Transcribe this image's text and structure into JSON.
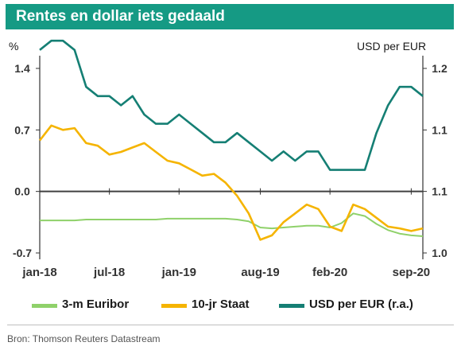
{
  "header": {
    "title": "Rentes en dollar iets gedaald"
  },
  "footer": {
    "source": "Bron: Thomson Reuters Datastream"
  },
  "colors": {
    "title_bg": "#159a84",
    "euribor": "#8fd16a",
    "staat": "#f5b400",
    "usd": "#157f74",
    "zero_line": "#404040"
  },
  "chart_data": {
    "type": "line",
    "left_axis": {
      "unit_label": "%",
      "ylim": [
        -0.7,
        1.4
      ],
      "ticks": [
        1.4,
        0.7,
        0.0,
        -0.7
      ],
      "tick_labels": [
        "1.4",
        "0.7",
        "0.0",
        "-0.7"
      ]
    },
    "right_axis": {
      "unit_label": "USD per EUR",
      "ylim": [
        1.0,
        1.2
      ],
      "ticks": [
        1.2,
        1.1333,
        1.0667,
        1.0
      ],
      "tick_labels": [
        "1.2",
        "1.1",
        "1.1",
        "1.0"
      ]
    },
    "x_axis": {
      "ticks": [
        "jan-18",
        "jul-18",
        "jan-19",
        "aug-19",
        "feb-20",
        "sep-20"
      ],
      "range": [
        "2018-01",
        "2020-10"
      ]
    },
    "grid": false,
    "legend_position": "bottom",
    "series": [
      {
        "name": "3-m Euribor",
        "axis": "left",
        "x": [
          "2018-01",
          "2018-02",
          "2018-03",
          "2018-04",
          "2018-05",
          "2018-06",
          "2018-07",
          "2018-08",
          "2018-09",
          "2018-10",
          "2018-11",
          "2018-12",
          "2019-01",
          "2019-02",
          "2019-03",
          "2019-04",
          "2019-05",
          "2019-06",
          "2019-07",
          "2019-08",
          "2019-09",
          "2019-10",
          "2019-11",
          "2019-12",
          "2020-01",
          "2020-02",
          "2020-03",
          "2020-04",
          "2020-05",
          "2020-06",
          "2020-07",
          "2020-08",
          "2020-09",
          "2020-10"
        ],
        "y": [
          -0.33,
          -0.33,
          -0.33,
          -0.33,
          -0.32,
          -0.32,
          -0.32,
          -0.32,
          -0.32,
          -0.32,
          -0.32,
          -0.31,
          -0.31,
          -0.31,
          -0.31,
          -0.31,
          -0.31,
          -0.32,
          -0.34,
          -0.41,
          -0.42,
          -0.41,
          -0.4,
          -0.39,
          -0.39,
          -0.41,
          -0.36,
          -0.25,
          -0.28,
          -0.37,
          -0.44,
          -0.48,
          -0.5,
          -0.51
        ]
      },
      {
        "name": "10-jr Staat",
        "axis": "left",
        "x": [
          "2018-01",
          "2018-02",
          "2018-03",
          "2018-04",
          "2018-05",
          "2018-06",
          "2018-07",
          "2018-08",
          "2018-09",
          "2018-10",
          "2018-11",
          "2018-12",
          "2019-01",
          "2019-02",
          "2019-03",
          "2019-04",
          "2019-05",
          "2019-06",
          "2019-07",
          "2019-08",
          "2019-09",
          "2019-10",
          "2019-11",
          "2019-12",
          "2020-01",
          "2020-02",
          "2020-03",
          "2020-04",
          "2020-05",
          "2020-06",
          "2020-07",
          "2020-08",
          "2020-09",
          "2020-10"
        ],
        "y": [
          0.58,
          0.75,
          0.7,
          0.72,
          0.55,
          0.52,
          0.42,
          0.45,
          0.5,
          0.55,
          0.45,
          0.35,
          0.32,
          0.25,
          0.18,
          0.2,
          0.1,
          -0.05,
          -0.25,
          -0.55,
          -0.5,
          -0.35,
          -0.25,
          -0.15,
          -0.2,
          -0.4,
          -0.45,
          -0.15,
          -0.2,
          -0.3,
          -0.4,
          -0.42,
          -0.45,
          -0.42
        ]
      },
      {
        "name": "USD per EUR (r.a.)",
        "axis": "right",
        "x": [
          "2018-01",
          "2018-02",
          "2018-03",
          "2018-04",
          "2018-05",
          "2018-06",
          "2018-07",
          "2018-08",
          "2018-09",
          "2018-10",
          "2018-11",
          "2018-12",
          "2019-01",
          "2019-02",
          "2019-03",
          "2019-04",
          "2019-05",
          "2019-06",
          "2019-07",
          "2019-08",
          "2019-09",
          "2019-10",
          "2019-11",
          "2019-12",
          "2020-01",
          "2020-02",
          "2020-03",
          "2020-04",
          "2020-05",
          "2020-06",
          "2020-07",
          "2020-08",
          "2020-09",
          "2020-10"
        ],
        "y": [
          1.22,
          1.23,
          1.23,
          1.22,
          1.18,
          1.17,
          1.17,
          1.16,
          1.17,
          1.15,
          1.14,
          1.14,
          1.15,
          1.14,
          1.13,
          1.12,
          1.12,
          1.13,
          1.12,
          1.11,
          1.1,
          1.11,
          1.1,
          1.11,
          1.11,
          1.09,
          1.09,
          1.09,
          1.09,
          1.13,
          1.16,
          1.18,
          1.18,
          1.17
        ]
      }
    ]
  },
  "legend": [
    {
      "name": "3-m Euribor",
      "color": "#8fd16a"
    },
    {
      "name": "10-jr Staat",
      "color": "#f5b400"
    },
    {
      "name": "USD per EUR (r.a.)",
      "color": "#157f74"
    }
  ]
}
